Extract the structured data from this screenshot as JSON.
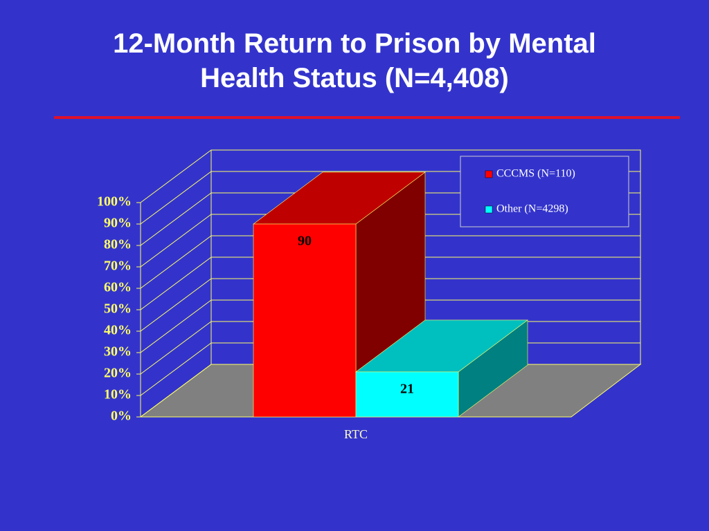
{
  "chart_data": {
    "type": "bar3d",
    "title": "12-Month Return to Prison by Mental Health Status (N=4,408)",
    "categories": [
      "RTC"
    ],
    "series": [
      {
        "name": "CCCMS (N=110)",
        "color": "#ff0000",
        "values": [
          90
        ]
      },
      {
        "name": "Other (N=4298)",
        "color": "#00ffff",
        "values": [
          21
        ]
      }
    ],
    "ylim": [
      0,
      100
    ],
    "yticks": [
      {
        "value": 0,
        "label": "0%"
      },
      {
        "value": 10,
        "label": "10%"
      },
      {
        "value": 20,
        "label": "20%"
      },
      {
        "value": 30,
        "label": "30%"
      },
      {
        "value": 40,
        "label": "40%"
      },
      {
        "value": 50,
        "label": "50%"
      },
      {
        "value": 60,
        "label": "60%"
      },
      {
        "value": 70,
        "label": "70%"
      },
      {
        "value": 80,
        "label": "80%"
      },
      {
        "value": 90,
        "label": "90%"
      },
      {
        "value": 100,
        "label": "100%"
      }
    ],
    "grid": true
  }
}
